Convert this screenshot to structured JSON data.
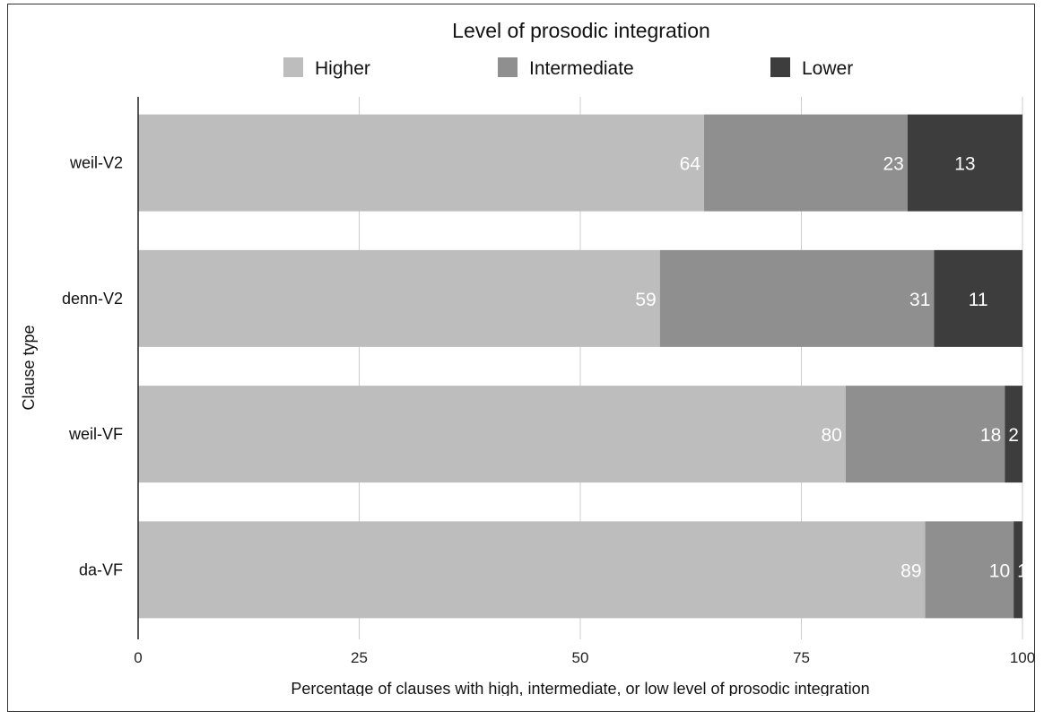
{
  "chart_data": {
    "type": "bar",
    "orientation": "horizontal",
    "stacked": true,
    "legend_title": "Level of prosodic integration",
    "legend_position": "top",
    "ylabel": "Clause type",
    "xlabel": "Percentage of clauses with high, intermediate, or low level of prosodic integration",
    "xlim": [
      0,
      100
    ],
    "xticks": [
      "0",
      "25",
      "50",
      "75",
      "100"
    ],
    "grid": true,
    "categories": [
      "weil-V2",
      "denn-V2",
      "weil-VF",
      "da-VF"
    ],
    "series": [
      {
        "name": "Higher",
        "color": "#bdbdbd",
        "values": [
          64,
          59,
          80,
          89
        ],
        "labels": [
          "64",
          "59",
          "80",
          "89"
        ]
      },
      {
        "name": "Intermediate",
        "color": "#8f8f8f",
        "values": [
          23,
          31,
          18,
          10
        ],
        "labels": [
          "23",
          "31",
          "18",
          "10"
        ]
      },
      {
        "name": "Lower",
        "color": "#3d3d3d",
        "values": [
          13,
          11,
          2,
          1
        ],
        "labels": [
          "13",
          "11",
          "2",
          "1"
        ]
      }
    ]
  }
}
